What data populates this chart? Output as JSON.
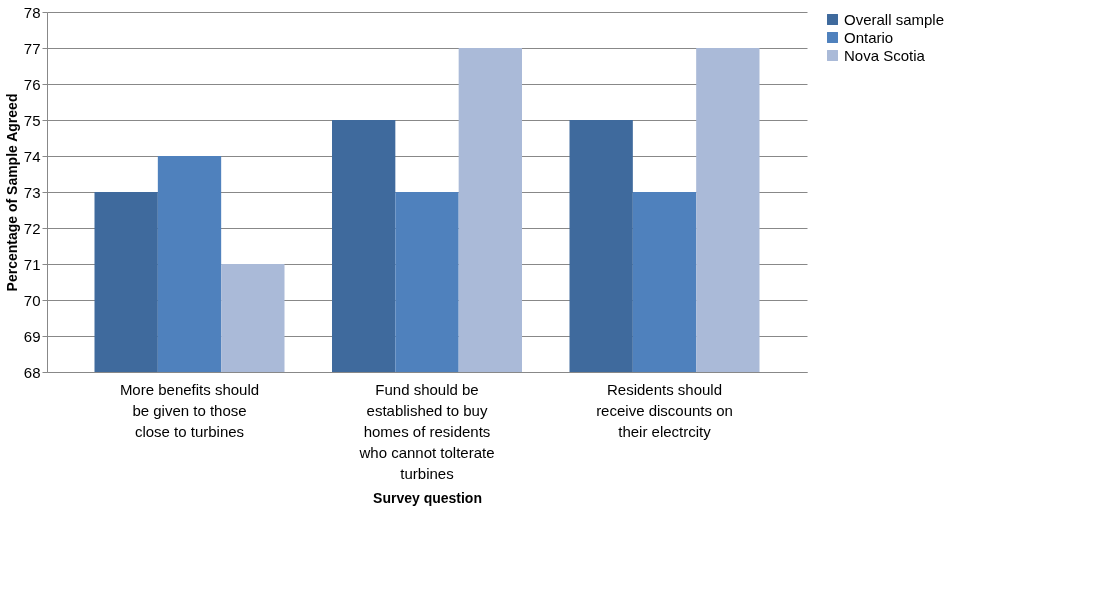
{
  "chart_data": {
    "type": "bar",
    "xlabel": "Survey question",
    "ylabel": "Percentage of Sample Agreed",
    "categories": [
      "More benefits should be given to those close to turbines",
      "Fund should be established to buy homes of residents who cannot tolterate turbines",
      "Residents should receive discounts on their electrcity"
    ],
    "series": [
      {
        "name": "Overall sample",
        "color": "#3f6a9d",
        "values": [
          73,
          75,
          75
        ]
      },
      {
        "name": "Ontario",
        "color": "#4f81bd",
        "values": [
          74,
          73,
          73
        ]
      },
      {
        "name": "Nova Scotia",
        "color": "#aabad8",
        "values": [
          71,
          77,
          77
        ]
      }
    ],
    "ylim": [
      68,
      78
    ],
    "yticks": [
      68,
      69,
      70,
      71,
      72,
      73,
      74,
      75,
      76,
      77,
      78
    ],
    "grid": "y",
    "legend": "right"
  }
}
